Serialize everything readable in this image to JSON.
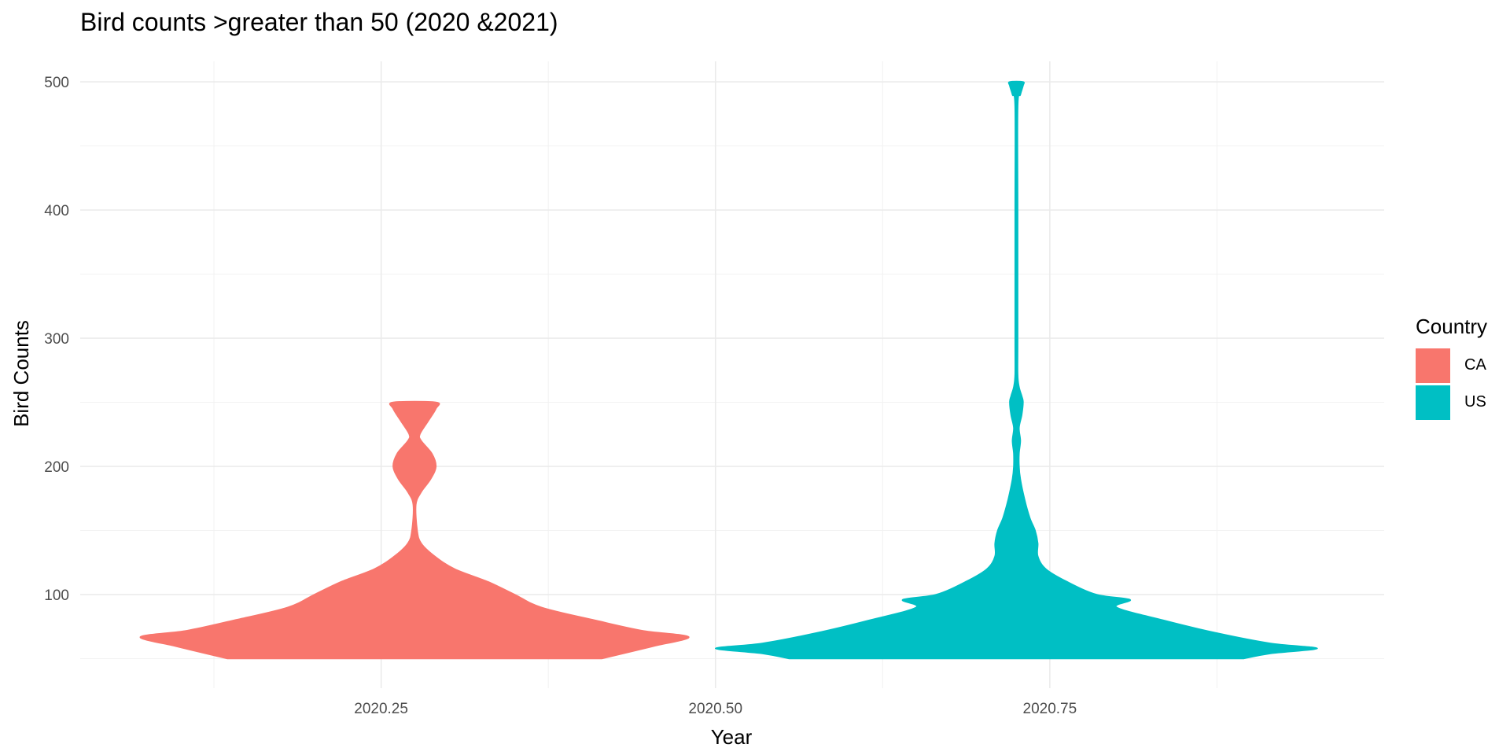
{
  "chart_data": {
    "type": "violin",
    "title": "Bird counts >greater than 50 (2020 &2021)",
    "xlabel": "Year",
    "ylabel": "Bird Counts",
    "xlim": [
      2020.025,
      2021.0
    ],
    "ylim": [
      27,
      516
    ],
    "x_ticks": [
      "2020.25",
      "2020.50",
      "2020.75"
    ],
    "x_tick_values": [
      2020.25,
      2020.5,
      2020.75
    ],
    "y_ticks": [
      100,
      200,
      300,
      400,
      500
    ],
    "grid": true,
    "legend": {
      "title": "Country",
      "position": "right"
    },
    "series": [
      {
        "name": "CA",
        "color": "#F8766D",
        "x_center": 2020.275,
        "max_half_width": 0.205,
        "profile": [
          [
            50,
            0.14
          ],
          [
            55,
            0.16
          ],
          [
            60,
            0.18
          ],
          [
            67,
            0.205
          ],
          [
            72,
            0.17
          ],
          [
            80,
            0.135
          ],
          [
            90,
            0.095
          ],
          [
            100,
            0.075
          ],
          [
            110,
            0.055
          ],
          [
            120,
            0.03
          ],
          [
            130,
            0.015
          ],
          [
            140,
            0.005
          ],
          [
            150,
            0.002
          ],
          [
            170,
            0.001
          ],
          [
            180,
            0.005
          ],
          [
            190,
            0.012
          ],
          [
            200,
            0.016
          ],
          [
            210,
            0.013
          ],
          [
            220,
            0.005
          ],
          [
            225,
            0.004
          ],
          [
            235,
            0.01
          ],
          [
            245,
            0.016
          ],
          [
            250,
            0.016
          ]
        ]
      },
      {
        "name": "US",
        "color": "#00BFC4",
        "x_center": 2020.725,
        "max_half_width": 0.225,
        "profile": [
          [
            50,
            0.17
          ],
          [
            54,
            0.19
          ],
          [
            58,
            0.225
          ],
          [
            62,
            0.19
          ],
          [
            70,
            0.15
          ],
          [
            80,
            0.11
          ],
          [
            90,
            0.075
          ],
          [
            96,
            0.085
          ],
          [
            100,
            0.06
          ],
          [
            110,
            0.038
          ],
          [
            120,
            0.022
          ],
          [
            130,
            0.016
          ],
          [
            140,
            0.016
          ],
          [
            150,
            0.014
          ],
          [
            160,
            0.01
          ],
          [
            175,
            0.006
          ],
          [
            190,
            0.003
          ],
          [
            200,
            0.002
          ],
          [
            210,
            0.002
          ],
          [
            220,
            0.003
          ],
          [
            230,
            0.002
          ],
          [
            240,
            0.004
          ],
          [
            250,
            0.005
          ],
          [
            255,
            0.004
          ],
          [
            262,
            0.002
          ],
          [
            272,
            0.001
          ],
          [
            300,
            0.001
          ],
          [
            400,
            0.001
          ],
          [
            480,
            0.001
          ],
          [
            490,
            0.003
          ],
          [
            497,
            0.005
          ],
          [
            500,
            0.005
          ]
        ]
      }
    ]
  }
}
